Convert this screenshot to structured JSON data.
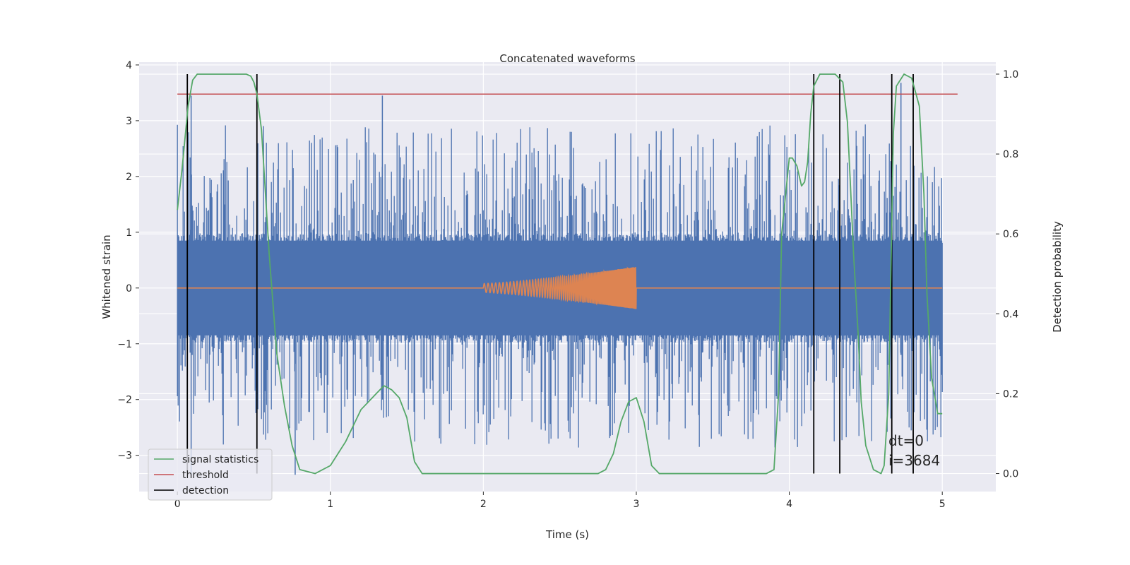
{
  "chart_data": {
    "type": "line",
    "title": "Concatenated waveforms",
    "xlabel": "Time (s)",
    "ylabel": "Whitened strain",
    "y2label": "Detection probability",
    "xlim": [
      -0.25,
      5.35
    ],
    "ylim": [
      -3.65,
      4.05
    ],
    "y2lim": [
      -0.045,
      1.03
    ],
    "xticks": [
      0,
      1,
      2,
      3,
      4,
      5
    ],
    "xtick_labels": [
      "0",
      "1",
      "2",
      "3",
      "4",
      "5"
    ],
    "yticks": [
      -3,
      -2,
      -1,
      0,
      1,
      2,
      3,
      4
    ],
    "ytick_labels": [
      "−3",
      "−2",
      "−1",
      "0",
      "1",
      "2",
      "3",
      "4"
    ],
    "y2ticks": [
      0,
      0.2,
      0.4,
      0.6,
      0.8,
      1.0
    ],
    "y2tick_labels": [
      "0.0",
      "0.2",
      "0.4",
      "0.6",
      "0.8",
      "1.0"
    ],
    "grid": true,
    "legend_position": "lower-left",
    "legend": [
      {
        "label": "signal statistics",
        "color": "#55a868"
      },
      {
        "label": "threshold",
        "color": "#c44e52"
      },
      {
        "label": "detection",
        "color": "#000000"
      }
    ],
    "series": [
      {
        "name": "",
        "kind": "noise",
        "color": "#4c72b0",
        "x_range": [
          0,
          5
        ],
        "core_amplitude": 0.85,
        "peak_max": 3.45,
        "peak_min": -3.35
      },
      {
        "name": "",
        "kind": "chirp",
        "color": "#dd8452",
        "x_range": [
          0,
          5
        ],
        "chirp_range": [
          2,
          3
        ],
        "amp_start": 0.08,
        "amp_end": 0.38
      },
      {
        "name": "signal statistics",
        "axis": "right",
        "color": "#55a868",
        "x": [
          0.0,
          0.03,
          0.07,
          0.1,
          0.13,
          0.17,
          0.25,
          0.35,
          0.45,
          0.48,
          0.5,
          0.52,
          0.55,
          0.6,
          0.65,
          0.7,
          0.75,
          0.8,
          0.9,
          1.0,
          1.1,
          1.2,
          1.3,
          1.35,
          1.4,
          1.45,
          1.5,
          1.55,
          1.6,
          2.0,
          2.5,
          2.75,
          2.8,
          2.85,
          2.9,
          2.95,
          3.0,
          3.05,
          3.1,
          3.15,
          3.2,
          3.5,
          3.85,
          3.9,
          3.93,
          3.95,
          4.0,
          4.02,
          4.05,
          4.08,
          4.1,
          4.12,
          4.14,
          4.16,
          4.2,
          4.3,
          4.35,
          4.38,
          4.4,
          4.42,
          4.45,
          4.47,
          4.5,
          4.55,
          4.6,
          4.62,
          4.65,
          4.68,
          4.7,
          4.75,
          4.8,
          4.85,
          4.88,
          4.9,
          4.93,
          4.97,
          5.0
        ],
        "y": [
          0.66,
          0.76,
          0.92,
          0.985,
          1.0,
          1.0,
          1.0,
          1.0,
          1.0,
          0.995,
          0.98,
          0.95,
          0.86,
          0.55,
          0.3,
          0.17,
          0.07,
          0.01,
          0.0,
          0.02,
          0.08,
          0.16,
          0.2,
          0.22,
          0.21,
          0.19,
          0.14,
          0.03,
          0.0,
          0.0,
          0.0,
          0.0,
          0.01,
          0.05,
          0.13,
          0.18,
          0.19,
          0.13,
          0.02,
          0.0,
          0.0,
          0.0,
          0.0,
          0.01,
          0.2,
          0.6,
          0.79,
          0.79,
          0.77,
          0.72,
          0.73,
          0.78,
          0.9,
          0.97,
          1.0,
          1.0,
          0.98,
          0.88,
          0.72,
          0.55,
          0.35,
          0.18,
          0.07,
          0.01,
          0.0,
          0.02,
          0.2,
          0.85,
          0.97,
          1.0,
          0.99,
          0.92,
          0.7,
          0.45,
          0.24,
          0.15,
          0.15
        ]
      },
      {
        "name": "threshold",
        "axis": "right",
        "color": "#c44e52",
        "x": [
          0,
          5.1
        ],
        "y": [
          0.95,
          0.95
        ]
      }
    ],
    "detections": {
      "name": "detection",
      "color": "#000000",
      "axis_range": [
        0,
        1
      ],
      "x": [
        0.065,
        0.52,
        4.16,
        4.33,
        4.67,
        4.81
      ]
    },
    "annotation": [
      "dt=0",
      "i=3684"
    ]
  }
}
